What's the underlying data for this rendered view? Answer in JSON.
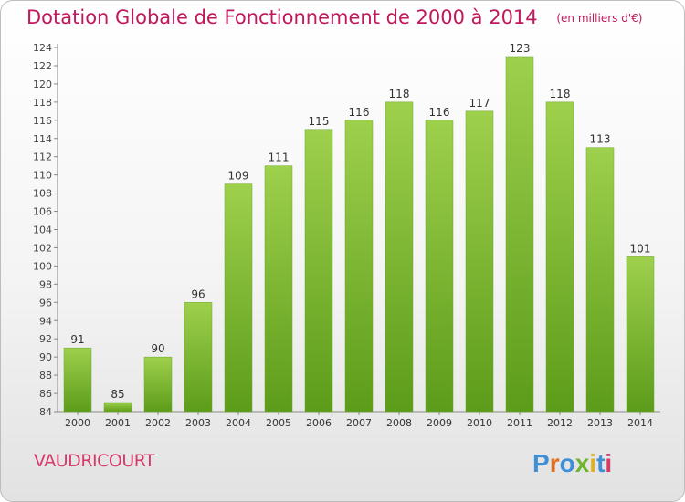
{
  "header": {
    "title": "Dotation Globale de Fonctionnement de 2000 à 2014",
    "unit": "(en milliers d'€)"
  },
  "footer": {
    "commune": "VAUDRICOURT",
    "logo_text": "Proxiti"
  },
  "colors": {
    "title": "#c0185c",
    "bar_top": "#9ed04c",
    "bar_bottom": "#5c9c1a",
    "commune": "#d63a6a"
  },
  "chart_data": {
    "type": "bar",
    "title": "Dotation Globale de Fonctionnement de 2000 à 2014",
    "subtitle": "(en milliers d'€)",
    "categories": [
      "2000",
      "2001",
      "2002",
      "2003",
      "2004",
      "2005",
      "2006",
      "2007",
      "2008",
      "2009",
      "2010",
      "2011",
      "2012",
      "2013",
      "2014"
    ],
    "values": [
      91,
      85,
      90,
      96,
      109,
      111,
      115,
      116,
      118,
      116,
      117,
      123,
      118,
      113,
      101
    ],
    "ylim": [
      84,
      124
    ],
    "yticks": [
      84,
      86,
      88,
      90,
      92,
      94,
      96,
      98,
      100,
      102,
      104,
      106,
      108,
      110,
      112,
      114,
      116,
      118,
      120,
      122,
      124
    ],
    "grid": false,
    "legend": "none"
  }
}
